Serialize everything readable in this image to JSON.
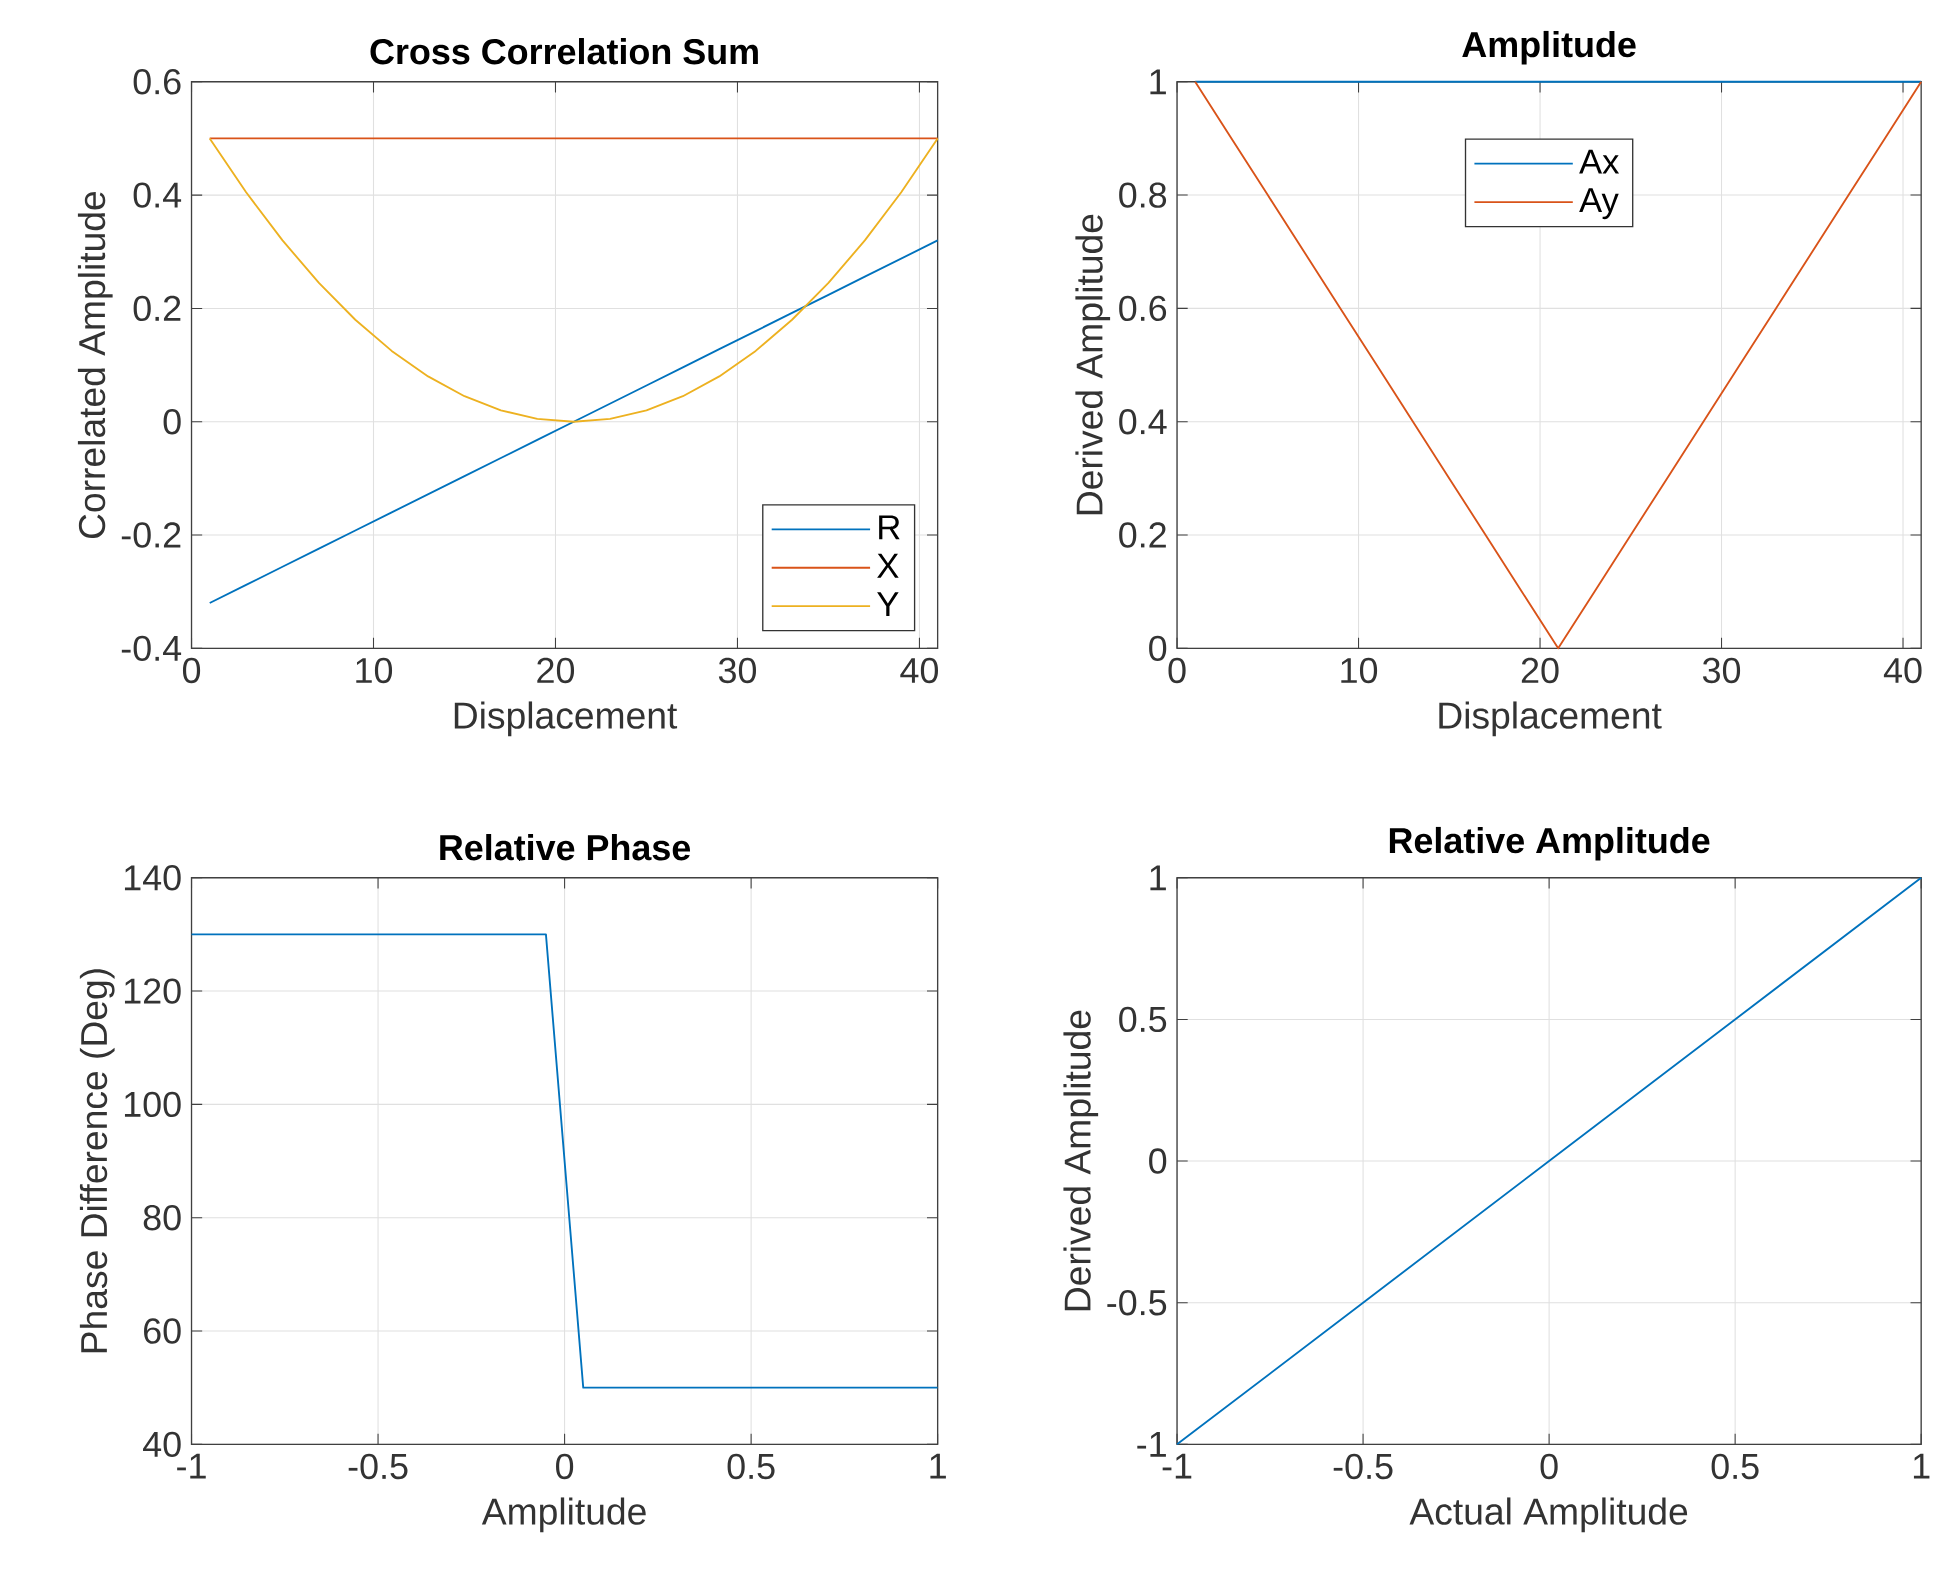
{
  "chart_data": [
    {
      "type": "line",
      "title": "Cross Correlation Sum",
      "xlabel": "Displacement",
      "ylabel": "Correlated Amplitude",
      "x": [
        1,
        3,
        5,
        7,
        9,
        11,
        13,
        15,
        17,
        19,
        21,
        23,
        25,
        27,
        29,
        31,
        33,
        35,
        37,
        39,
        41
      ],
      "xlim": [
        0,
        41
      ],
      "ylim": [
        -0.4,
        0.6
      ],
      "xticks": [
        0,
        10,
        20,
        30,
        40
      ],
      "yticks": [
        -0.4,
        -0.2,
        0,
        0.2,
        0.4,
        0.6
      ],
      "grid": true,
      "legend": "bottom right",
      "series": [
        {
          "name": "R",
          "color": "#0072bd",
          "values": [
            -0.32,
            -0.288,
            -0.256,
            -0.224,
            -0.192,
            -0.16,
            -0.128,
            -0.096,
            -0.064,
            -0.032,
            0,
            0.032,
            0.064,
            0.096,
            0.128,
            0.16,
            0.192,
            0.224,
            0.256,
            0.288,
            0.32
          ]
        },
        {
          "name": "X",
          "color": "#d95319",
          "values": [
            0.5,
            0.5,
            0.5,
            0.5,
            0.5,
            0.5,
            0.5,
            0.5,
            0.5,
            0.5,
            0.5,
            0.5,
            0.5,
            0.5,
            0.5,
            0.5,
            0.5,
            0.5,
            0.5,
            0.5,
            0.5
          ]
        },
        {
          "name": "Y",
          "color": "#edb120",
          "values": [
            0.5,
            0.405,
            0.32,
            0.245,
            0.18,
            0.125,
            0.08,
            0.045,
            0.02,
            0.005,
            0,
            0.005,
            0.02,
            0.045,
            0.08,
            0.125,
            0.18,
            0.245,
            0.32,
            0.405,
            0.5
          ]
        }
      ]
    },
    {
      "type": "line",
      "title": "Amplitude",
      "xlabel": "Displacement",
      "ylabel": "Derived Amplitude",
      "x": [
        1,
        3,
        5,
        7,
        9,
        11,
        13,
        15,
        17,
        19,
        21,
        23,
        25,
        27,
        29,
        31,
        33,
        35,
        37,
        39,
        41
      ],
      "xlim": [
        0,
        41
      ],
      "ylim": [
        0,
        1
      ],
      "xticks": [
        0,
        10,
        20,
        30,
        40
      ],
      "yticks": [
        0,
        0.2,
        0.4,
        0.6,
        0.8,
        1
      ],
      "grid": true,
      "legend": "top",
      "series": [
        {
          "name": "Ax",
          "color": "#0072bd",
          "values": [
            1,
            1,
            1,
            1,
            1,
            1,
            1,
            1,
            1,
            1,
            1,
            1,
            1,
            1,
            1,
            1,
            1,
            1,
            1,
            1,
            1
          ]
        },
        {
          "name": "Ay",
          "color": "#d95319",
          "values": [
            1,
            0.9,
            0.8,
            0.7,
            0.6,
            0.5,
            0.4,
            0.3,
            0.2,
            0.1,
            0,
            0.1,
            0.2,
            0.3,
            0.4,
            0.5,
            0.6,
            0.7,
            0.8,
            0.9,
            1
          ]
        }
      ]
    },
    {
      "type": "line",
      "title": "Relative Phase",
      "xlabel": "Amplitude",
      "ylabel": "Phase Difference (Deg)",
      "xlim": [
        -1,
        1
      ],
      "ylim": [
        40,
        140
      ],
      "xticks": [
        -1,
        -0.5,
        0,
        0.5,
        1
      ],
      "yticks": [
        40,
        60,
        80,
        100,
        120,
        140
      ],
      "grid": true,
      "series": [
        {
          "color": "#0072bd",
          "x": [
            -1,
            -0.05,
            0.05,
            1
          ],
          "values": [
            130,
            130,
            50,
            50
          ]
        }
      ]
    },
    {
      "type": "line",
      "title": "Relative Amplitude",
      "xlabel": "Actual Amplitude",
      "ylabel": "Derived Amplitude",
      "xlim": [
        -1,
        1
      ],
      "ylim": [
        -1,
        1
      ],
      "xticks": [
        -1,
        -0.5,
        0,
        0.5,
        1
      ],
      "yticks": [
        -1,
        -0.5,
        0,
        0.5,
        1
      ],
      "grid": true,
      "series": [
        {
          "color": "#0072bd",
          "x": [
            -1,
            -0.5,
            0,
            0.5,
            1
          ],
          "values": [
            -1,
            -0.5,
            0,
            0.5,
            1
          ]
        }
      ]
    }
  ]
}
